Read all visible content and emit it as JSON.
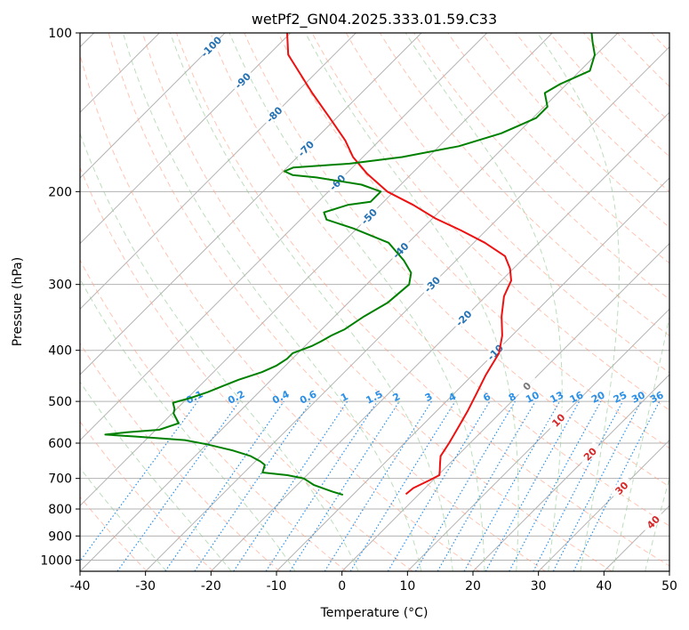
{
  "chart_data": {
    "type": "line",
    "title": "wetPf2_GN04.2025.333.01.59.C33",
    "xlabel": "Temperature (°C)",
    "ylabel": "Pressure (hPa)",
    "xlim": [
      -40,
      50
    ],
    "ylim": [
      1050,
      100
    ],
    "y_scale": "log",
    "grid": true,
    "xticks": [
      -40,
      -30,
      -20,
      -10,
      0,
      10,
      20,
      30,
      40,
      50
    ],
    "yticks": [
      100,
      200,
      300,
      400,
      500,
      600,
      700,
      800,
      900,
      1000
    ],
    "skew_slope_deg": 45,
    "colors": {
      "temperature": "#ee1111",
      "dewpoint": "#008000",
      "isotherm": "#b3b3b3",
      "dry_adiabat": "#ff9f80",
      "moist_adiabat": "#8fc88f",
      "mixing_ratio": "#2a8fe6",
      "isotherm_label": "#2471b3",
      "warm_label": "#d62728",
      "zero_label": "#777777"
    },
    "series": [
      {
        "role": "temperature",
        "points": [
          [
            -2.0,
            750
          ],
          [
            -1.8,
            730
          ],
          [
            -0.5,
            705
          ],
          [
            0.2,
            690
          ],
          [
            -0.5,
            675
          ],
          [
            -1.5,
            655
          ],
          [
            -2.5,
            635
          ],
          [
            -3.2,
            600
          ],
          [
            -4.2,
            560
          ],
          [
            -5.3,
            520
          ],
          [
            -6.5,
            485
          ],
          [
            -8.0,
            445
          ],
          [
            -9.3,
            405
          ],
          [
            -11.5,
            375
          ],
          [
            -14.5,
            345
          ],
          [
            -17.2,
            316
          ],
          [
            -18.5,
            295
          ],
          [
            -20.5,
            280
          ],
          [
            -23.2,
            265
          ],
          [
            -28.3,
            250
          ],
          [
            -33.8,
            237
          ],
          [
            -39.5,
            225
          ],
          [
            -45.0,
            212
          ],
          [
            -51.0,
            200
          ],
          [
            -56.8,
            185
          ],
          [
            -61.5,
            172
          ],
          [
            -65.2,
            160
          ],
          [
            -71.0,
            145
          ],
          [
            -77.5,
            130
          ],
          [
            -83.0,
            118
          ],
          [
            -87.0,
            110
          ],
          [
            -90.5,
            100
          ]
        ]
      },
      {
        "role": "dewpoint",
        "points": [
          [
            -11.5,
            752
          ],
          [
            -13.5,
            742
          ],
          [
            -14.8,
            735
          ],
          [
            -17.5,
            720
          ],
          [
            -20.0,
            700
          ],
          [
            -23.0,
            690
          ],
          [
            -27.2,
            682
          ],
          [
            -28.0,
            660
          ],
          [
            -29.2,
            650
          ],
          [
            -31.5,
            635
          ],
          [
            -35.0,
            620
          ],
          [
            -40.0,
            603
          ],
          [
            -44.0,
            592
          ],
          [
            -52.0,
            583
          ],
          [
            -57.0,
            578
          ],
          [
            -54.0,
            572
          ],
          [
            -49.5,
            566
          ],
          [
            -47.5,
            550
          ],
          [
            -48.5,
            540
          ],
          [
            -49.8,
            527
          ],
          [
            -50.3,
            517
          ],
          [
            -51.5,
            503
          ],
          [
            -49.5,
            492
          ],
          [
            -47.8,
            480
          ],
          [
            -46.5,
            468
          ],
          [
            -45.0,
            455
          ],
          [
            -42.6,
            440
          ],
          [
            -41.4,
            428
          ],
          [
            -40.8,
            415
          ],
          [
            -40.8,
            405
          ],
          [
            -39.0,
            393
          ],
          [
            -38.3,
            385
          ],
          [
            -37.6,
            375
          ],
          [
            -36.5,
            365
          ],
          [
            -35.5,
            345
          ],
          [
            -34.0,
            325
          ],
          [
            -33.5,
            300
          ],
          [
            -35.0,
            285
          ],
          [
            -38.0,
            270
          ],
          [
            -43.0,
            250
          ],
          [
            -50.5,
            235
          ],
          [
            -56.0,
            226
          ],
          [
            -57.5,
            219
          ],
          [
            -55.0,
            212
          ],
          [
            -52.0,
            209
          ],
          [
            -52.0,
            200
          ],
          [
            -56.0,
            194
          ],
          [
            -64.0,
            188
          ],
          [
            -68.0,
            186
          ],
          [
            -69.8,
            183
          ],
          [
            -69.0,
            180
          ],
          [
            -61.0,
            177
          ],
          [
            -54.0,
            172
          ],
          [
            -47.0,
            164
          ],
          [
            -42.5,
            155
          ],
          [
            -41.0,
            150
          ],
          [
            -39.5,
            145
          ],
          [
            -39.5,
            138
          ],
          [
            -42.0,
            130
          ],
          [
            -41.0,
            125
          ],
          [
            -38.5,
            118
          ],
          [
            -40.2,
            110
          ],
          [
            -42.5,
            104
          ],
          [
            -44.0,
            100
          ]
        ]
      }
    ],
    "dry_adiabat_thetas_k": [
      230,
      240,
      250,
      260,
      270,
      280,
      290,
      300,
      310,
      320,
      330,
      340,
      350,
      360,
      370,
      380,
      390,
      400,
      410,
      420,
      430,
      440,
      450,
      460,
      470,
      480,
      490,
      500,
      510,
      520,
      530,
      540,
      550,
      560,
      570,
      580
    ],
    "moist_adiabat_start_temps_c": [
      -30,
      -20,
      -10,
      0,
      10,
      15,
      20,
      25,
      30,
      35,
      40,
      45
    ],
    "mixing_ratio_values_gkg": [
      "0.1",
      "0.2",
      "0.4",
      "0.6",
      "1",
      "1.5",
      "2",
      "3",
      "4",
      "6",
      "8",
      "10",
      "13",
      "16",
      "20",
      "25",
      "30",
      "36"
    ],
    "isotherm_labels": [
      {
        "t": -100,
        "text": "-100"
      },
      {
        "t": -90,
        "text": "-90"
      },
      {
        "t": -80,
        "text": "-80"
      },
      {
        "t": -70,
        "text": "-70"
      },
      {
        "t": -60,
        "text": "-60"
      },
      {
        "t": -50,
        "text": "-50"
      },
      {
        "t": -40,
        "text": "-40"
      },
      {
        "t": -30,
        "text": "-30"
      },
      {
        "t": -20,
        "text": "-20"
      },
      {
        "t": -10,
        "text": "-10"
      },
      {
        "t": 0,
        "text": "0"
      },
      {
        "t": 10,
        "text": "10"
      },
      {
        "t": 20,
        "text": "20"
      },
      {
        "t": 30,
        "text": "30"
      },
      {
        "t": 40,
        "text": "40"
      }
    ]
  }
}
